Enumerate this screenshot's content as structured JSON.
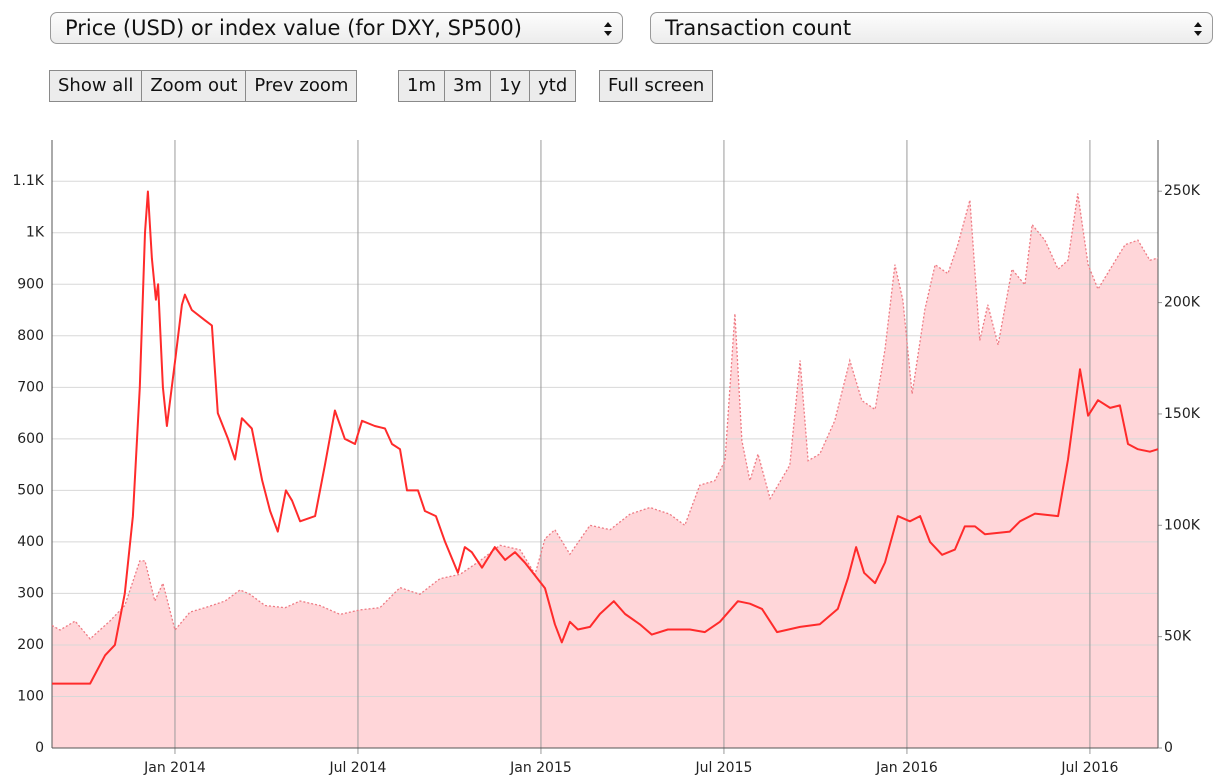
{
  "controls": {
    "left_select": "Price (USD) or index value (for DXY, SP500)",
    "right_select": "Transaction count",
    "zoom_buttons": [
      "Show all",
      "Zoom out",
      "Prev zoom"
    ],
    "range_buttons": [
      "1m",
      "3m",
      "1y",
      "ytd"
    ],
    "screen_buttons": [
      "Full screen"
    ]
  },
  "chart_data": {
    "type": "line",
    "grid": true,
    "xlim": [
      2013.664,
      2016.686
    ],
    "xticks": [
      {
        "value": 2014,
        "label": "Jan 2014"
      },
      {
        "value": 2014.5,
        "label": "Jul 2014"
      },
      {
        "value": 2015,
        "label": "Jan 2015"
      },
      {
        "value": 2015.5,
        "label": "Jul 2015"
      },
      {
        "value": 2016,
        "label": "Jan 2016"
      },
      {
        "value": 2016.5,
        "label": "Jul 2016"
      }
    ],
    "ylim": [
      0,
      1180
    ],
    "yticks": [
      0,
      100,
      200,
      300,
      400,
      500,
      600,
      700,
      800,
      900,
      {
        "value": 1000,
        "label": "1K"
      },
      {
        "value": 1100,
        "label": "1.1K"
      }
    ],
    "y2lim": [
      0,
      273000
    ],
    "y2ticks": [
      0,
      {
        "value": 50000,
        "label": "50K"
      },
      {
        "value": 100000,
        "label": "100K"
      },
      {
        "value": 150000,
        "label": "150K"
      },
      {
        "value": 200000,
        "label": "200K"
      },
      {
        "value": 250000,
        "label": "250K"
      }
    ],
    "series": [
      {
        "type": "area",
        "axis": "y2",
        "color": "#ee7b84",
        "fill": "#ffd6d9",
        "x": [
          2013.664,
          2013.686,
          2013.727,
          2013.768,
          2013.822,
          2013.863,
          2013.904,
          2013.918,
          2013.945,
          2013.967,
          2014.0,
          2014.041,
          2014.082,
          2014.137,
          2014.178,
          2014.205,
          2014.246,
          2014.301,
          2014.342,
          2014.396,
          2014.451,
          2014.505,
          2014.56,
          2014.615,
          2014.669,
          2014.724,
          2014.779,
          2014.833,
          2014.888,
          2014.943,
          2014.984,
          2015.011,
          2015.038,
          2015.079,
          2015.134,
          2015.189,
          2015.243,
          2015.298,
          2015.352,
          2015.393,
          2015.434,
          2015.475,
          2015.503,
          2015.53,
          2015.549,
          2015.571,
          2015.593,
          2015.626,
          2015.68,
          2015.708,
          2015.73,
          2015.762,
          2015.803,
          2015.844,
          2015.877,
          2015.913,
          2015.94,
          2015.967,
          2015.989,
          2016.014,
          2016.049,
          2016.077,
          2016.112,
          2016.139,
          2016.172,
          2016.199,
          2016.221,
          2016.249,
          2016.287,
          2016.322,
          2016.342,
          2016.377,
          2016.413,
          2016.44,
          2016.467,
          2016.495,
          2016.522,
          2016.555,
          2016.596,
          2016.631,
          2016.664,
          2016.686
        ],
        "values": [
          55000,
          53000,
          57000,
          49000,
          57000,
          64000,
          84000,
          84000,
          66000,
          74000,
          53000,
          61000,
          63000,
          66000,
          71000,
          69000,
          64000,
          63000,
          66000,
          64000,
          60000,
          62000,
          63000,
          72000,
          69000,
          76000,
          78000,
          84000,
          91000,
          89000,
          78000,
          94000,
          98000,
          87000,
          100000,
          98000,
          105000,
          108000,
          105000,
          100000,
          118000,
          120000,
          129000,
          195000,
          138000,
          120000,
          132000,
          112000,
          127000,
          174000,
          129000,
          132000,
          147000,
          174000,
          156000,
          152000,
          179000,
          217000,
          201000,
          159000,
          197000,
          217000,
          213000,
          226000,
          246000,
          183000,
          199000,
          181000,
          215000,
          208000,
          235000,
          228000,
          215000,
          219000,
          249000,
          217000,
          206000,
          215000,
          226000,
          228000,
          219000,
          220000
        ]
      },
      {
        "type": "line",
        "color": "#ff2b2b",
        "x": [
          2013.664,
          2013.768,
          2013.809,
          2013.836,
          2013.863,
          2013.885,
          2013.904,
          2013.918,
          2013.926,
          2013.937,
          2013.948,
          2013.954,
          2013.967,
          2013.978,
          2014.0,
          2014.019,
          2014.027,
          2014.046,
          2014.082,
          2014.101,
          2014.117,
          2014.145,
          2014.164,
          2014.183,
          2014.21,
          2014.238,
          2014.26,
          2014.281,
          2014.303,
          2014.32,
          2014.342,
          2014.383,
          2014.41,
          2014.437,
          2014.464,
          2014.492,
          2014.511,
          2014.546,
          2014.574,
          2014.593,
          2014.615,
          2014.634,
          2014.664,
          2014.683,
          2014.713,
          2014.738,
          2014.773,
          2014.792,
          2014.811,
          2014.839,
          2014.874,
          2014.902,
          2014.929,
          2014.956,
          2014.978,
          2015.011,
          2015.038,
          2015.057,
          2015.079,
          2015.101,
          2015.134,
          2015.161,
          2015.199,
          2015.23,
          2015.27,
          2015.303,
          2015.347,
          2015.407,
          2015.448,
          2015.489,
          2015.538,
          2015.571,
          2015.604,
          2015.645,
          2015.708,
          2015.762,
          2015.811,
          2015.839,
          2015.861,
          2015.883,
          2015.913,
          2015.94,
          2015.975,
          2016.008,
          2016.036,
          2016.063,
          2016.096,
          2016.131,
          2016.158,
          2016.186,
          2016.213,
          2016.281,
          2016.309,
          2016.35,
          2016.413,
          2016.44,
          2016.473,
          2016.495,
          2016.522,
          2016.555,
          2016.582,
          2016.604,
          2016.631,
          2016.664,
          2016.686
        ],
        "values": [
          125,
          125,
          180,
          200,
          300,
          450,
          700,
          1000,
          1080,
          950,
          870,
          900,
          700,
          625,
          750,
          860,
          880,
          850,
          830,
          820,
          650,
          600,
          560,
          640,
          620,
          520,
          460,
          420,
          500,
          480,
          440,
          450,
          550,
          655,
          600,
          590,
          635,
          625,
          620,
          590,
          580,
          500,
          500,
          460,
          450,
          400,
          340,
          390,
          380,
          350,
          390,
          365,
          380,
          360,
          340,
          310,
          240,
          205,
          245,
          230,
          235,
          260,
          285,
          260,
          240,
          220,
          230,
          230,
          225,
          245,
          285,
          280,
          270,
          225,
          235,
          240,
          270,
          330,
          390,
          340,
          320,
          360,
          450,
          440,
          450,
          400,
          375,
          385,
          430,
          430,
          415,
          420,
          440,
          455,
          450,
          560,
          735,
          645,
          675,
          660,
          665,
          590,
          580,
          575,
          580
        ]
      }
    ]
  }
}
